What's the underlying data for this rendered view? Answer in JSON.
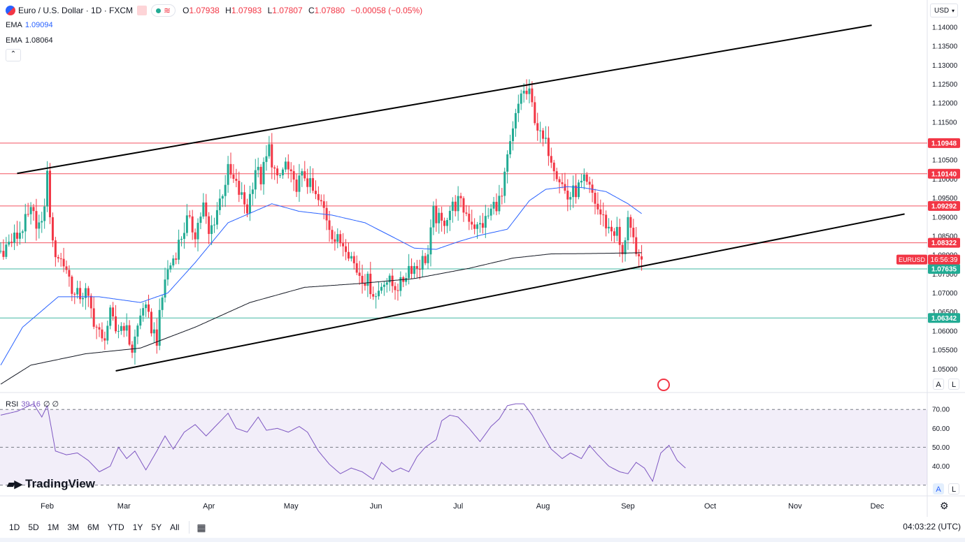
{
  "header": {
    "symbol": "Euro / U.S. Dollar · 1D · FXCM",
    "ohlc": [
      {
        "k": "O",
        "v": "1.07938"
      },
      {
        "k": "H",
        "v": "1.07983"
      },
      {
        "k": "L",
        "v": "1.07807"
      },
      {
        "k": "C",
        "v": "1.07880"
      }
    ],
    "change": "−0.00058 (−0.05%)",
    "currency_button": "USD",
    "icons": [
      "flag-icon",
      "stream-icon"
    ]
  },
  "indicators": [
    {
      "label": "EMA",
      "value": "1.09094",
      "color": "#2962ff"
    },
    {
      "label": "EMA",
      "value": "1.08064",
      "color": "#131722"
    }
  ],
  "rsi": {
    "label": "RSI",
    "value": "39.16",
    "extras": "∅ ∅",
    "color": "#7e57c2",
    "levels": [
      70,
      50,
      30
    ]
  },
  "colors": {
    "up": "#22ab94",
    "down": "#f23645",
    "ema_fast": "#2962ff",
    "ema_slow": "#131722",
    "red_line": "#f23645",
    "green_line": "#22ab94",
    "rsi_band": "#7e57c2"
  },
  "logo": "TradingView",
  "toolbar": {
    "timeframes": [
      "1D",
      "5D",
      "1M",
      "3M",
      "6M",
      "YTD",
      "1Y",
      "5Y",
      "All"
    ],
    "clock": "04:03:22 (UTC)"
  },
  "scale_buttons": {
    "a": "A",
    "l": "L"
  },
  "chart_data": {
    "type": "candlestick",
    "title": "Euro / U.S. Dollar · 1D · FXCM",
    "ylim": [
      1.046,
      1.142
    ],
    "y_ticks": [
      "1.14000",
      "1.13500",
      "1.13000",
      "1.12500",
      "1.12000",
      "1.11500",
      "1.11000",
      "1.10500",
      "1.10000",
      "1.09500",
      "1.09000",
      "1.08500",
      "1.08000",
      "1.07500",
      "1.07000",
      "1.06500",
      "1.06000",
      "1.05500",
      "1.05000"
    ],
    "x_ticks": [
      "Feb",
      "Mar",
      "Apr",
      "May",
      "Jun",
      "Jul",
      "Aug",
      "Sep",
      "Oct",
      "Nov",
      "Dec"
    ],
    "x_tick_days": [
      26,
      54,
      85,
      115,
      146,
      176,
      207,
      238,
      268,
      299,
      329
    ],
    "x_range_days": [
      9,
      342
    ],
    "horizontal_levels": [
      {
        "label": "1.10948",
        "price": 1.10948,
        "color": "#f23645"
      },
      {
        "label": "1.10140",
        "price": 1.1014,
        "color": "#f23645"
      },
      {
        "label": "1.09292",
        "price": 1.09292,
        "color": "#f23645"
      },
      {
        "label": "1.08322",
        "price": 1.08322,
        "color": "#f23645"
      },
      {
        "label": "1.07635",
        "price": 1.07635,
        "color": "#22ab94"
      },
      {
        "label": "1.06342",
        "price": 1.06342,
        "color": "#22ab94"
      }
    ],
    "current_price": {
      "symbol": "EURUSD",
      "countdown": "16:56:39",
      "price": 1.0788
    },
    "trendlines": [
      {
        "from": [
          15,
          1.1015
        ],
        "to": [
          327,
          1.1405
        ]
      },
      {
        "from": [
          51,
          1.0495
        ],
        "to": [
          339,
          1.0908
        ]
      }
    ],
    "anchors": [
      [
        9,
        1.081
      ],
      [
        15,
        1.085
      ],
      [
        20,
        1.091
      ],
      [
        24,
        1.087
      ],
      [
        26,
        1.101
      ],
      [
        28,
        1.082
      ],
      [
        33,
        1.0765
      ],
      [
        36,
        1.069
      ],
      [
        40,
        1.07
      ],
      [
        43,
        1.063
      ],
      [
        46,
        1.057
      ],
      [
        49,
        1.064
      ],
      [
        51,
        1.06
      ],
      [
        54,
        1.062
      ],
      [
        57,
        1.055
      ],
      [
        61,
        1.067
      ],
      [
        64,
        1.061
      ],
      [
        66,
        1.058
      ],
      [
        69,
        1.074
      ],
      [
        73,
        1.081
      ],
      [
        77,
        1.089
      ],
      [
        80,
        1.086
      ],
      [
        83,
        1.093
      ],
      [
        85,
        1.085
      ],
      [
        88,
        1.092
      ],
      [
        92,
        1.102
      ],
      [
        95,
        1.098
      ],
      [
        99,
        1.092
      ],
      [
        102,
        1.103
      ],
      [
        104,
        1.1
      ],
      [
        107,
        1.108
      ],
      [
        110,
        1.099
      ],
      [
        113,
        1.104
      ],
      [
        116,
        1.098
      ],
      [
        120,
        1.101
      ],
      [
        124,
        1.095
      ],
      [
        127,
        1.092
      ],
      [
        131,
        1.084
      ],
      [
        135,
        1.083
      ],
      [
        139,
        1.076
      ],
      [
        143,
        1.073
      ],
      [
        146,
        1.069
      ],
      [
        149,
        1.074
      ],
      [
        152,
        1.072
      ],
      [
        155,
        1.072
      ],
      [
        158,
        1.077
      ],
      [
        161,
        1.077
      ],
      [
        165,
        1.08
      ],
      [
        167,
        1.091
      ],
      [
        170,
        1.088
      ],
      [
        173,
        1.092
      ],
      [
        176,
        1.094
      ],
      [
        180,
        1.09
      ],
      [
        183,
        1.087
      ],
      [
        186,
        1.089
      ],
      [
        189,
        1.093
      ],
      [
        192,
        1.095
      ],
      [
        194,
        1.105
      ],
      [
        197,
        1.116
      ],
      [
        199,
        1.123
      ],
      [
        202,
        1.122
      ],
      [
        206,
        1.111
      ],
      [
        209,
        1.108
      ],
      [
        212,
        1.102
      ],
      [
        216,
        1.095
      ],
      [
        219,
        1.097
      ],
      [
        222,
        1.099
      ],
      [
        225,
        1.096
      ],
      [
        227,
        1.092
      ],
      [
        231,
        1.087
      ],
      [
        234,
        1.086
      ],
      [
        236,
        1.079
      ],
      [
        238,
        1.091
      ],
      [
        241,
        1.0784
      ],
      [
        243,
        1.0788
      ]
    ],
    "series": [
      {
        "name": "EMA",
        "value": "1.09094",
        "anchors": [
          [
            9,
            1.051
          ],
          [
            17,
            1.061
          ],
          [
            30,
            1.069
          ],
          [
            45,
            1.069
          ],
          [
            60,
            1.0675
          ],
          [
            70,
            1.07
          ],
          [
            80,
            1.078
          ],
          [
            92,
            1.0885
          ],
          [
            100,
            1.091
          ],
          [
            108,
            1.0935
          ],
          [
            118,
            1.0915
          ],
          [
            130,
            1.0905
          ],
          [
            142,
            1.0885
          ],
          [
            152,
            1.0848
          ],
          [
            160,
            1.0818
          ],
          [
            168,
            1.0815
          ],
          [
            176,
            1.0835
          ],
          [
            184,
            1.0852
          ],
          [
            194,
            1.0868
          ],
          [
            202,
            1.0943
          ],
          [
            208,
            1.0973
          ],
          [
            216,
            1.098
          ],
          [
            222,
            1.0977
          ],
          [
            230,
            1.0967
          ],
          [
            238,
            1.0935
          ],
          [
            243,
            1.0909
          ]
        ]
      },
      {
        "name": "EMA",
        "value": "1.08064",
        "anchors": [
          [
            9,
            1.046
          ],
          [
            20,
            1.051
          ],
          [
            40,
            1.054
          ],
          [
            60,
            1.0555
          ],
          [
            80,
            1.061
          ],
          [
            100,
            1.0675
          ],
          [
            120,
            1.0715
          ],
          [
            140,
            1.0725
          ],
          [
            160,
            1.0738
          ],
          [
            180,
            1.0765
          ],
          [
            196,
            1.0792
          ],
          [
            210,
            1.0803
          ],
          [
            225,
            1.0804
          ],
          [
            243,
            1.0806
          ]
        ]
      }
    ],
    "rsi_series": {
      "name": "RSI",
      "value": "39.16",
      "ylim": [
        25,
        76
      ],
      "ticks": [
        "70.00",
        "60.00",
        "50.00",
        "40.00"
      ],
      "anchors": [
        [
          9,
          67
        ],
        [
          15,
          69
        ],
        [
          21,
          73
        ],
        [
          24,
          66
        ],
        [
          26,
          72
        ],
        [
          29,
          48
        ],
        [
          33,
          46
        ],
        [
          37,
          47
        ],
        [
          41,
          43
        ],
        [
          45,
          37
        ],
        [
          49,
          40
        ],
        [
          52,
          50
        ],
        [
          55,
          44
        ],
        [
          58,
          48
        ],
        [
          62,
          38
        ],
        [
          66,
          48
        ],
        [
          69,
          56
        ],
        [
          72,
          49
        ],
        [
          76,
          58
        ],
        [
          80,
          62
        ],
        [
          84,
          56
        ],
        [
          88,
          62
        ],
        [
          92,
          68
        ],
        [
          95,
          60
        ],
        [
          99,
          58
        ],
        [
          103,
          66
        ],
        [
          106,
          59
        ],
        [
          110,
          60
        ],
        [
          114,
          58
        ],
        [
          118,
          61
        ],
        [
          121,
          58
        ],
        [
          125,
          48
        ],
        [
          129,
          41
        ],
        [
          133,
          36
        ],
        [
          137,
          39
        ],
        [
          141,
          37
        ],
        [
          145,
          33
        ],
        [
          148,
          42
        ],
        [
          152,
          37
        ],
        [
          155,
          39
        ],
        [
          158,
          37
        ],
        [
          161,
          45
        ],
        [
          164,
          50
        ],
        [
          168,
          54
        ],
        [
          170,
          64
        ],
        [
          173,
          67
        ],
        [
          176,
          66
        ],
        [
          180,
          60
        ],
        [
          184,
          53
        ],
        [
          188,
          61
        ],
        [
          191,
          65
        ],
        [
          194,
          72
        ],
        [
          197,
          73
        ],
        [
          200,
          73
        ],
        [
          203,
          67
        ],
        [
          206,
          59
        ],
        [
          210,
          49
        ],
        [
          214,
          44
        ],
        [
          217,
          47
        ],
        [
          221,
          44
        ],
        [
          224,
          51
        ],
        [
          227,
          46
        ],
        [
          231,
          40
        ],
        [
          235,
          37
        ],
        [
          238,
          36
        ],
        [
          241,
          42
        ],
        [
          244,
          39
        ],
        [
          247,
          32
        ],
        [
          250,
          47
        ],
        [
          253,
          51
        ],
        [
          256,
          43
        ],
        [
          259,
          39
        ]
      ]
    }
  }
}
